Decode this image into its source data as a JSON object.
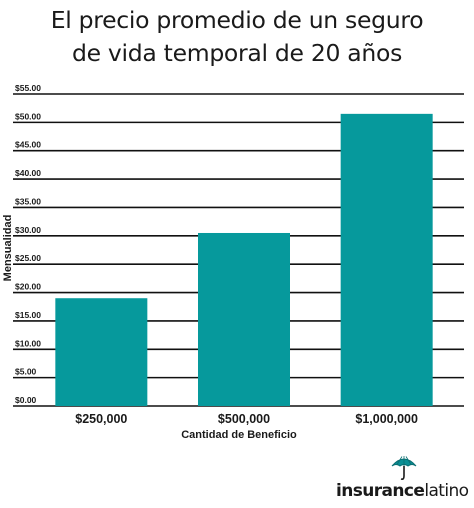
{
  "title_line1": "El precio promedio de un seguro",
  "title_line2": "de vida temporal de 20 años",
  "logo": {
    "brand_bold": "insurance",
    "brand_light": "latino",
    "icon": "umbrella-icon"
  },
  "colors": {
    "bar": "#06999c",
    "grid": "#111111",
    "text": "#1a1a1a"
  },
  "chart_data": {
    "type": "bar",
    "title": "El precio promedio de un seguro de vida temporal de 20 años",
    "categories": [
      "$250,000",
      "$500,000",
      "$1,000,000"
    ],
    "values": [
      19,
      30.5,
      51.5
    ],
    "xlabel": "Cantidad de Beneficio",
    "ylabel": "Mensualidad",
    "ylim": [
      0,
      55
    ],
    "yticks": [
      0,
      5,
      10,
      15,
      20,
      25,
      30,
      35,
      40,
      45,
      50,
      55
    ],
    "ytick_labels": [
      "$0.00",
      "$5.00",
      "$10.00",
      "$15.00",
      "$20.00",
      "$25.00",
      "$30.00",
      "$35.00",
      "$40.00",
      "$45.00",
      "$50.00",
      "$55.00"
    ],
    "grid": true,
    "legend": "none"
  }
}
